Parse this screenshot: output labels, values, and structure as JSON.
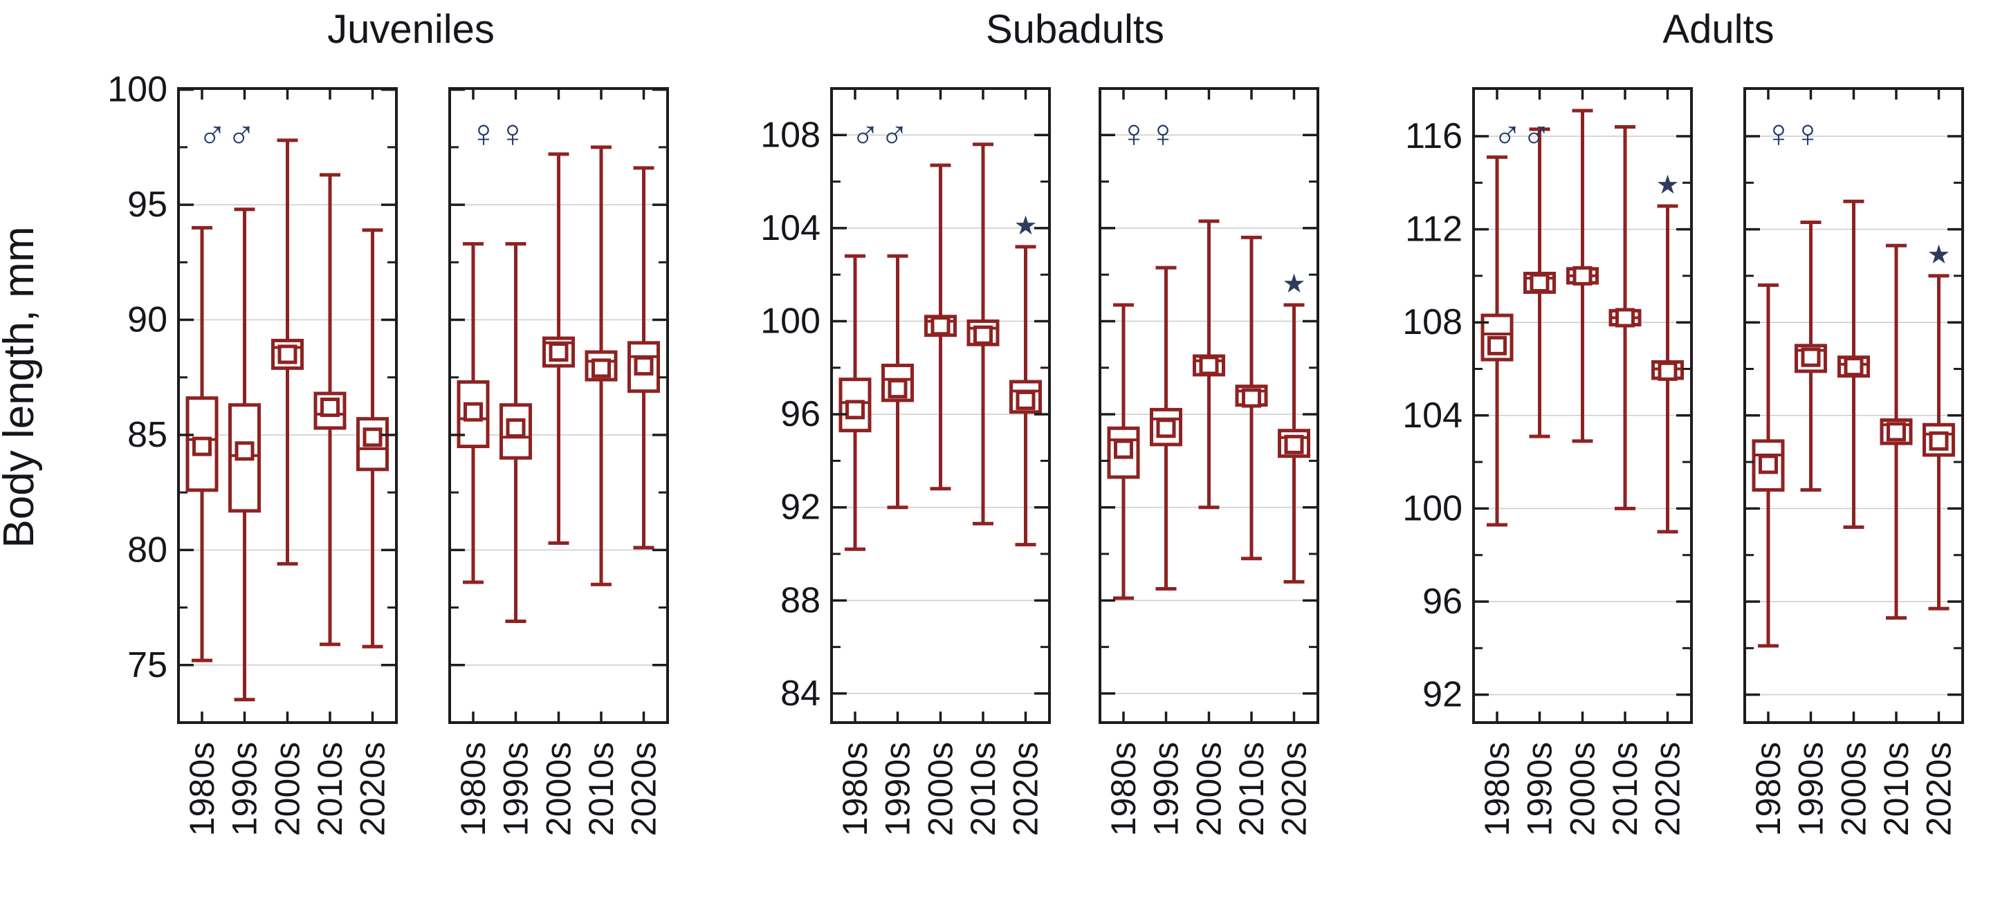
{
  "figure": {
    "ylabel": "Body length, mm",
    "group_titles": [
      "Juveniles",
      "Subadults",
      "Adults"
    ],
    "categories": [
      "1980s",
      "1990s",
      "2000s",
      "2010s",
      "2020s"
    ],
    "male_symbol": "♂♂",
    "female_symbol": "♀♀",
    "star_symbol": "★",
    "colors": {
      "series_red": "#8e2222",
      "frame": "#1c1c1c",
      "grid": "#cccccc",
      "text": "#15151c",
      "sex_symbol": "#223a66",
      "star": "#2f3b5c",
      "background": "#ffffff"
    }
  },
  "chart_data": [
    {
      "type": "box",
      "group": "Juveniles",
      "sex": "males",
      "sex_symbol": "♂♂",
      "show_ylabels": true,
      "ylim": [
        72.5,
        100.05
      ],
      "yticks_major": [
        100,
        95,
        90,
        85,
        80,
        75
      ],
      "yticks_minor": [
        97.5,
        92.5,
        87.5,
        82.5,
        77.5,
        72.5
      ],
      "categories": [
        "1980s",
        "1990s",
        "2000s",
        "2010s",
        "2020s"
      ],
      "series": [
        {
          "decade": "1980s",
          "whisker_low": 75.2,
          "whisker_high": 94.0,
          "box_low": 82.6,
          "box_high": 86.6,
          "median": 84.8,
          "mean": 84.5,
          "significant": false
        },
        {
          "decade": "1990s",
          "whisker_low": 73.5,
          "whisker_high": 94.8,
          "box_low": 81.7,
          "box_high": 86.3,
          "median": 84.1,
          "mean": 84.3,
          "significant": false
        },
        {
          "decade": "2000s",
          "whisker_low": 79.4,
          "whisker_high": 97.8,
          "box_low": 87.9,
          "box_high": 89.1,
          "median": 88.8,
          "mean": 88.5,
          "significant": false
        },
        {
          "decade": "2010s",
          "whisker_low": 75.9,
          "whisker_high": 96.3,
          "box_low": 85.3,
          "box_high": 86.8,
          "median": 85.9,
          "mean": 86.2,
          "significant": false
        },
        {
          "decade": "2020s",
          "whisker_low": 75.8,
          "whisker_high": 93.9,
          "box_low": 83.5,
          "box_high": 85.7,
          "median": 84.4,
          "mean": 84.9,
          "significant": false
        }
      ]
    },
    {
      "type": "box",
      "group": "Juveniles",
      "sex": "females",
      "sex_symbol": "♀♀",
      "show_ylabels": false,
      "ylim": [
        72.5,
        100.05
      ],
      "yticks_major": [
        100,
        95,
        90,
        85,
        80,
        75
      ],
      "yticks_minor": [
        97.5,
        92.5,
        87.5,
        82.5,
        77.5,
        72.5
      ],
      "categories": [
        "1980s",
        "1990s",
        "2000s",
        "2010s",
        "2020s"
      ],
      "series": [
        {
          "decade": "1980s",
          "whisker_low": 78.6,
          "whisker_high": 93.3,
          "box_low": 84.5,
          "box_high": 87.3,
          "median": 85.7,
          "mean": 86.0,
          "significant": false
        },
        {
          "decade": "1990s",
          "whisker_low": 76.9,
          "whisker_high": 93.3,
          "box_low": 84.0,
          "box_high": 86.3,
          "median": 84.9,
          "mean": 85.3,
          "significant": false
        },
        {
          "decade": "2000s",
          "whisker_low": 80.3,
          "whisker_high": 97.2,
          "box_low": 88.0,
          "box_high": 89.2,
          "median": 89.0,
          "mean": 88.6,
          "significant": false
        },
        {
          "decade": "2010s",
          "whisker_low": 78.5,
          "whisker_high": 97.5,
          "box_low": 87.4,
          "box_high": 88.6,
          "median": 88.2,
          "mean": 87.9,
          "significant": false
        },
        {
          "decade": "2020s",
          "whisker_low": 80.1,
          "whisker_high": 96.6,
          "box_low": 86.9,
          "box_high": 89.0,
          "median": 88.4,
          "mean": 88.0,
          "significant": false
        }
      ]
    },
    {
      "type": "box",
      "group": "Subadults",
      "sex": "males",
      "sex_symbol": "♂♂",
      "show_ylabels": true,
      "ylim": [
        82.75,
        110.0
      ],
      "yticks_major": [
        108,
        104,
        100,
        96,
        92,
        88,
        84
      ],
      "yticks_minor": [
        106,
        102,
        98,
        94,
        90,
        86
      ],
      "categories": [
        "1980s",
        "1990s",
        "2000s",
        "2010s",
        "2020s"
      ],
      "series": [
        {
          "decade": "1980s",
          "whisker_low": 90.2,
          "whisker_high": 102.8,
          "box_low": 95.3,
          "box_high": 97.5,
          "median": 96.5,
          "mean": 96.2,
          "significant": false
        },
        {
          "decade": "1990s",
          "whisker_low": 92.0,
          "whisker_high": 102.8,
          "box_low": 96.6,
          "box_high": 98.1,
          "median": 97.5,
          "mean": 97.1,
          "significant": false
        },
        {
          "decade": "2000s",
          "whisker_low": 92.8,
          "whisker_high": 106.7,
          "box_low": 99.4,
          "box_high": 100.2,
          "median": 100.0,
          "mean": 99.8,
          "significant": false
        },
        {
          "decade": "2010s",
          "whisker_low": 91.3,
          "whisker_high": 107.6,
          "box_low": 99.0,
          "box_high": 100.0,
          "median": 99.7,
          "mean": 99.4,
          "significant": false
        },
        {
          "decade": "2020s",
          "whisker_low": 90.4,
          "whisker_high": 103.2,
          "box_low": 96.1,
          "box_high": 97.4,
          "median": 97.0,
          "mean": 96.6,
          "significant": true
        }
      ]
    },
    {
      "type": "box",
      "group": "Subadults",
      "sex": "females",
      "sex_symbol": "♀♀",
      "show_ylabels": false,
      "ylim": [
        82.75,
        110.0
      ],
      "yticks_major": [
        108,
        104,
        100,
        96,
        92,
        88,
        84
      ],
      "yticks_minor": [
        106,
        102,
        98,
        94,
        90,
        86
      ],
      "categories": [
        "1980s",
        "1990s",
        "2000s",
        "2010s",
        "2020s"
      ],
      "series": [
        {
          "decade": "1980s",
          "whisker_low": 88.1,
          "whisker_high": 100.7,
          "box_low": 93.3,
          "box_high": 95.4,
          "median": 94.9,
          "mean": 94.5,
          "significant": false
        },
        {
          "decade": "1990s",
          "whisker_low": 88.5,
          "whisker_high": 102.3,
          "box_low": 94.7,
          "box_high": 96.2,
          "median": 95.8,
          "mean": 95.4,
          "significant": false
        },
        {
          "decade": "2000s",
          "whisker_low": 92.0,
          "whisker_high": 104.3,
          "box_low": 97.7,
          "box_high": 98.5,
          "median": 98.3,
          "mean": 98.1,
          "significant": false
        },
        {
          "decade": "2010s",
          "whisker_low": 89.8,
          "whisker_high": 103.6,
          "box_low": 96.4,
          "box_high": 97.2,
          "median": 97.0,
          "mean": 96.7,
          "significant": false
        },
        {
          "decade": "2020s",
          "whisker_low": 88.8,
          "whisker_high": 100.7,
          "box_low": 94.2,
          "box_high": 95.3,
          "median": 95.0,
          "mean": 94.7,
          "significant": true
        }
      ]
    },
    {
      "type": "box",
      "group": "Adults",
      "sex": "males",
      "sex_symbol": "♂♂",
      "show_ylabels": true,
      "ylim": [
        90.8,
        118.05
      ],
      "yticks_major": [
        116,
        112,
        108,
        104,
        100,
        96,
        92
      ],
      "yticks_minor": [
        114,
        110,
        106,
        102,
        98,
        94
      ],
      "categories": [
        "1980s",
        "1990s",
        "2000s",
        "2010s",
        "2020s"
      ],
      "series": [
        {
          "decade": "1980s",
          "whisker_low": 99.3,
          "whisker_high": 115.1,
          "box_low": 106.4,
          "box_high": 108.3,
          "median": 107.5,
          "mean": 107.0,
          "significant": false
        },
        {
          "decade": "1990s",
          "whisker_low": 103.1,
          "whisker_high": 116.3,
          "box_low": 109.3,
          "box_high": 110.1,
          "median": 109.9,
          "mean": 109.7,
          "significant": false
        },
        {
          "decade": "2000s",
          "whisker_low": 102.9,
          "whisker_high": 117.1,
          "box_low": 109.7,
          "box_high": 110.3,
          "median": 110.0,
          "mean": 110.0,
          "significant": false
        },
        {
          "decade": "2010s",
          "whisker_low": 100.0,
          "whisker_high": 116.4,
          "box_low": 107.9,
          "box_high": 108.5,
          "median": 108.2,
          "mean": 108.2,
          "significant": false
        },
        {
          "decade": "2020s",
          "whisker_low": 99.0,
          "whisker_high": 113.0,
          "box_low": 105.6,
          "box_high": 106.3,
          "median": 106.0,
          "mean": 105.9,
          "significant": true
        }
      ]
    },
    {
      "type": "box",
      "group": "Adults",
      "sex": "females",
      "sex_symbol": "♀♀",
      "show_ylabels": false,
      "ylim": [
        90.8,
        118.05
      ],
      "yticks_major": [
        116,
        112,
        108,
        104,
        100,
        96,
        92
      ],
      "yticks_minor": [
        114,
        110,
        106,
        102,
        98,
        94
      ],
      "categories": [
        "1980s",
        "1990s",
        "2000s",
        "2010s",
        "2020s"
      ],
      "series": [
        {
          "decade": "1980s",
          "whisker_low": 94.1,
          "whisker_high": 109.6,
          "box_low": 100.8,
          "box_high": 102.9,
          "median": 102.3,
          "mean": 101.9,
          "significant": false
        },
        {
          "decade": "1990s",
          "whisker_low": 100.8,
          "whisker_high": 112.3,
          "box_low": 105.9,
          "box_high": 107.0,
          "median": 106.8,
          "mean": 106.5,
          "significant": false
        },
        {
          "decade": "2000s",
          "whisker_low": 99.2,
          "whisker_high": 113.2,
          "box_low": 105.7,
          "box_high": 106.5,
          "median": 106.2,
          "mean": 106.1,
          "significant": false
        },
        {
          "decade": "2010s",
          "whisker_low": 95.3,
          "whisker_high": 111.3,
          "box_low": 102.8,
          "box_high": 103.8,
          "median": 103.6,
          "mean": 103.3,
          "significant": false
        },
        {
          "decade": "2020s",
          "whisker_low": 95.7,
          "whisker_high": 110.0,
          "box_low": 102.3,
          "box_high": 103.6,
          "median": 103.2,
          "mean": 102.9,
          "significant": true
        }
      ]
    }
  ]
}
